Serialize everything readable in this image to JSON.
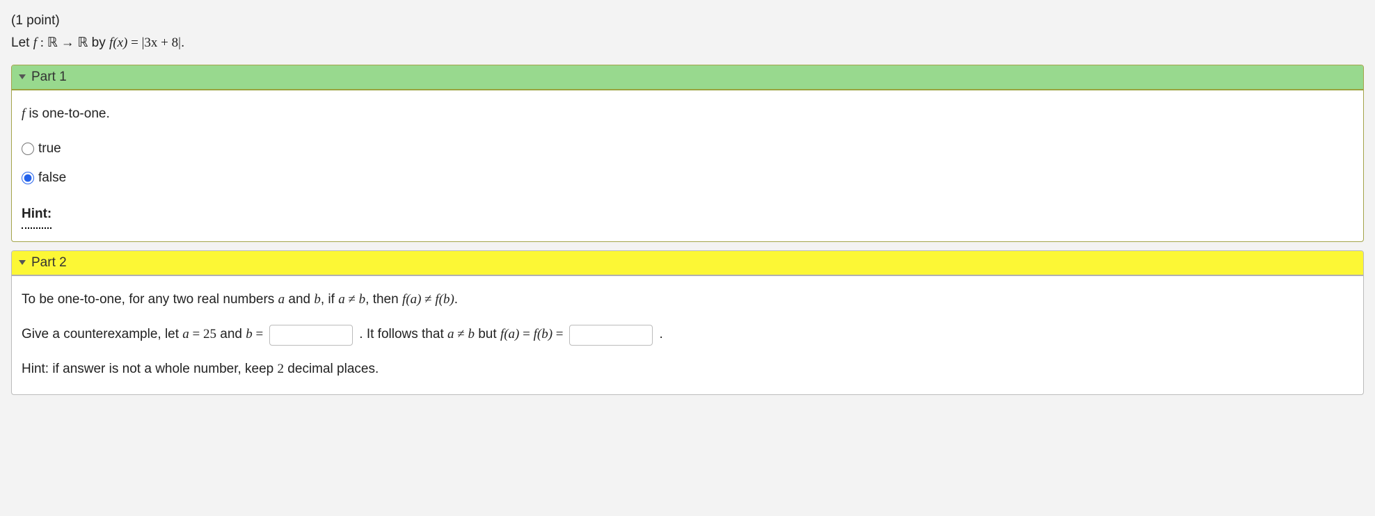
{
  "points_label": "(1 point)",
  "prompt": {
    "lead": "Let ",
    "f": "f",
    "colon": " : ",
    "R": "ℝ",
    "arrow": " → ",
    "by": " by ",
    "fx": "f(x)",
    "eq": " = ",
    "expr": "|3x + 8|",
    "period": "."
  },
  "part1": {
    "title": "Part 1",
    "statement_f": "f",
    "statement_rest": " is one-to-one.",
    "option_true": "true",
    "option_false": "false",
    "selected": "false",
    "hint_label": "Hint:"
  },
  "part2": {
    "title": "Part 2",
    "line1_a": "To be one-to-one, for any two real numbers ",
    "a": "a",
    "and": " and ",
    "b": "b",
    "ifsep": ", if ",
    "neq": " ≠ ",
    "then": ", then ",
    "fa": "f(a)",
    "fb": "f(b)",
    "period": ".",
    "line2_a": "Give a counterexample, let ",
    "eq25": " = 25",
    "andtxt": " and ",
    "eqsym": " = ",
    "line2_b": " . It follows that ",
    "but": " but ",
    "input_b_value": "",
    "input_fab_value": "",
    "hint_line": "Hint: if answer is not a whole number, keep ",
    "two": "2",
    "hint_tail": " decimal places."
  },
  "colors": {
    "page_bg": "#f3f3f3",
    "panel_border": "#bbbbbb",
    "green_header_bg": "#98d98e",
    "green_border": "#a3a44a",
    "yellow_header_bg": "#fcf735",
    "radio_accent": "#2563eb"
  }
}
